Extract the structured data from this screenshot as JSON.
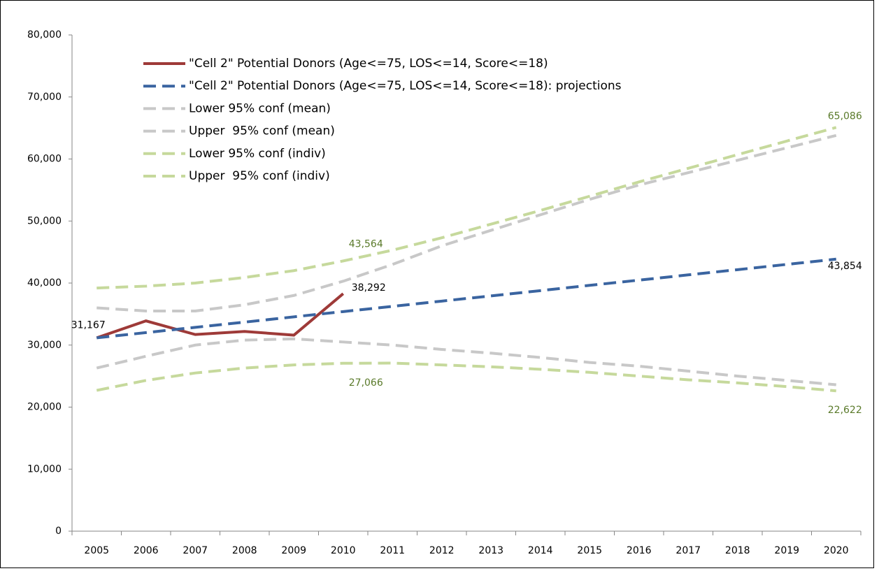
{
  "chart_data": {
    "type": "line",
    "categories": [
      "2005",
      "2006",
      "2007",
      "2008",
      "2009",
      "2010",
      "2011",
      "2012",
      "2013",
      "2014",
      "2015",
      "2016",
      "2017",
      "2018",
      "2019",
      "2020"
    ],
    "ylim": [
      0,
      80000
    ],
    "yticks": [
      0,
      {
        "value": 10000,
        "label": "10,000"
      },
      {
        "value": 20000,
        "label": "20,000"
      },
      {
        "value": 30000,
        "label": "30,000"
      },
      {
        "value": 40000,
        "label": "40,000"
      },
      {
        "value": 50000,
        "label": "50,000"
      },
      {
        "value": 60000,
        "label": "60,000"
      },
      {
        "value": 70000,
        "label": "70,000"
      },
      {
        "value": 80000,
        "label": "80,000"
      }
    ],
    "grid": false,
    "legend": "top-left",
    "series": [
      {
        "name": "\"Cell 2\" Potential Donors (Age<=75, LOS<=14, Score<=18)",
        "color": "#9e3a38",
        "dash": false,
        "values": [
          31167,
          33900,
          31700,
          32200,
          31600,
          38292,
          null,
          null,
          null,
          null,
          null,
          null,
          null,
          null,
          null,
          null
        ],
        "value_labels": [
          "31,167",
          null,
          null,
          null,
          null,
          "38,292",
          null,
          null,
          null,
          null,
          null,
          null,
          null,
          null,
          null,
          null
        ]
      },
      {
        "name": "\"Cell 2\" Potential Donors (Age<=75, LOS<=14, Score<=18): projections",
        "color": "#3a64a0",
        "dash": true,
        "values": [
          31167,
          32010,
          32860,
          33700,
          34550,
          35400,
          36240,
          37090,
          37930,
          38780,
          39630,
          40470,
          41320,
          42160,
          43010,
          43854
        ],
        "value_labels": [
          null,
          null,
          null,
          null,
          null,
          null,
          null,
          null,
          null,
          null,
          null,
          null,
          null,
          null,
          null,
          "43,854"
        ]
      },
      {
        "name": "Lower 95% conf (mean)",
        "color": "#c8c8c8",
        "dash": true,
        "values": [
          26300,
          28200,
          30000,
          30800,
          31000,
          30500,
          30000,
          29300,
          28700,
          28000,
          27200,
          26600,
          25800,
          25000,
          24300,
          23600
        ]
      },
      {
        "name": "Upper  95% conf (mean)",
        "color": "#c8c8c8",
        "dash": true,
        "values": [
          36000,
          35500,
          35500,
          36500,
          38000,
          40300,
          43000,
          46000,
          48500,
          51000,
          53500,
          55800,
          57800,
          59800,
          61800,
          63800
        ]
      },
      {
        "name": "Lower 95% conf (indiv)",
        "color": "#c6d99c",
        "dash": true,
        "values": [
          22700,
          24300,
          25500,
          26300,
          26800,
          27066,
          27100,
          26800,
          26500,
          26100,
          25600,
          25000,
          24400,
          23900,
          23300,
          22622
        ],
        "value_labels": [
          null,
          null,
          null,
          null,
          null,
          "27,066",
          null,
          null,
          null,
          null,
          null,
          null,
          null,
          null,
          null,
          "22,622"
        ]
      },
      {
        "name": "Upper  95% conf (indiv)",
        "color": "#c6d99c",
        "dash": true,
        "values": [
          39200,
          39500,
          40000,
          40900,
          42000,
          43564,
          45300,
          47300,
          49500,
          51700,
          54000,
          56300,
          58500,
          60700,
          62900,
          65086
        ],
        "value_labels": [
          null,
          null,
          null,
          null,
          null,
          "43,564",
          null,
          null,
          null,
          null,
          null,
          null,
          null,
          null,
          null,
          "65,086"
        ]
      }
    ]
  }
}
